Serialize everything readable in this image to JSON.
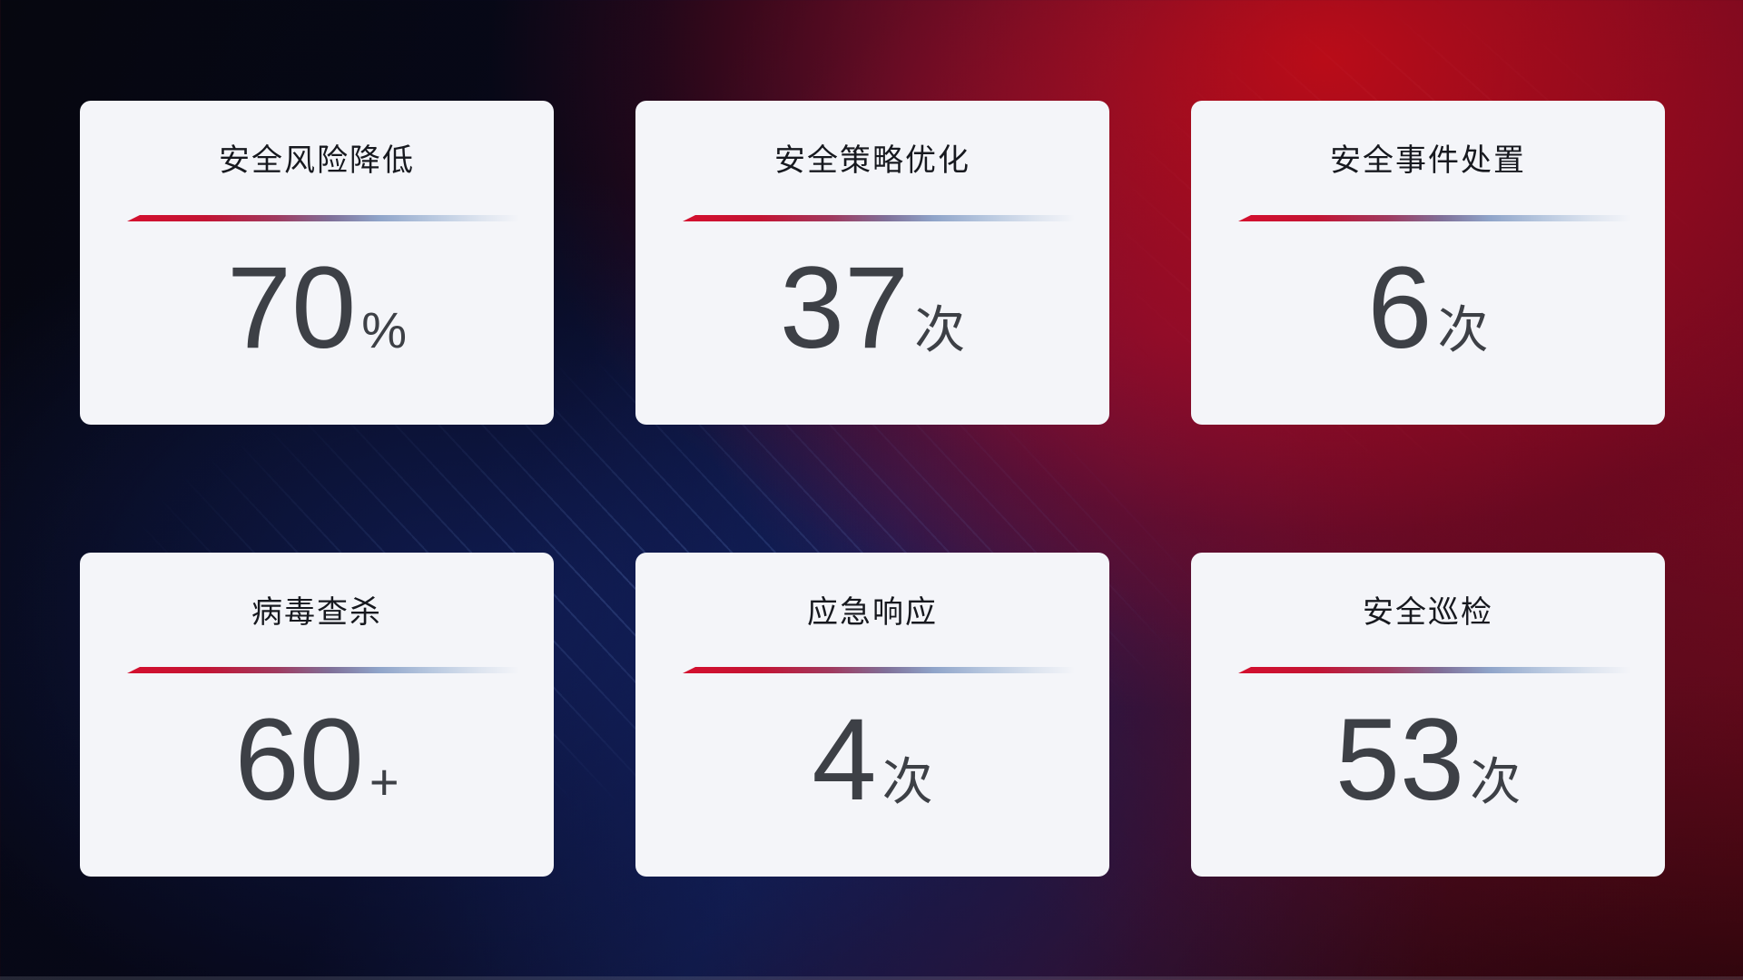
{
  "theme": {
    "card_background": "#f4f5f9",
    "title_color": "#17191f",
    "value_color": "#3d4046",
    "divider_gradient_start": "#d40f2e",
    "divider_gradient_mid": "#8fa4c9",
    "background_red_accent": "#b40d1f",
    "background_blue_accent": "#101740"
  },
  "cards": [
    {
      "title": "安全风险降低",
      "value": "70",
      "unit": "%"
    },
    {
      "title": "安全策略优化",
      "value": "37",
      "unit": "次"
    },
    {
      "title": "安全事件处置",
      "value": "6",
      "unit": "次"
    },
    {
      "title": "病毒查杀",
      "value": "60",
      "unit": "+"
    },
    {
      "title": "应急响应",
      "value": "4",
      "unit": "次"
    },
    {
      "title": "安全巡检",
      "value": "53",
      "unit": "次"
    }
  ]
}
